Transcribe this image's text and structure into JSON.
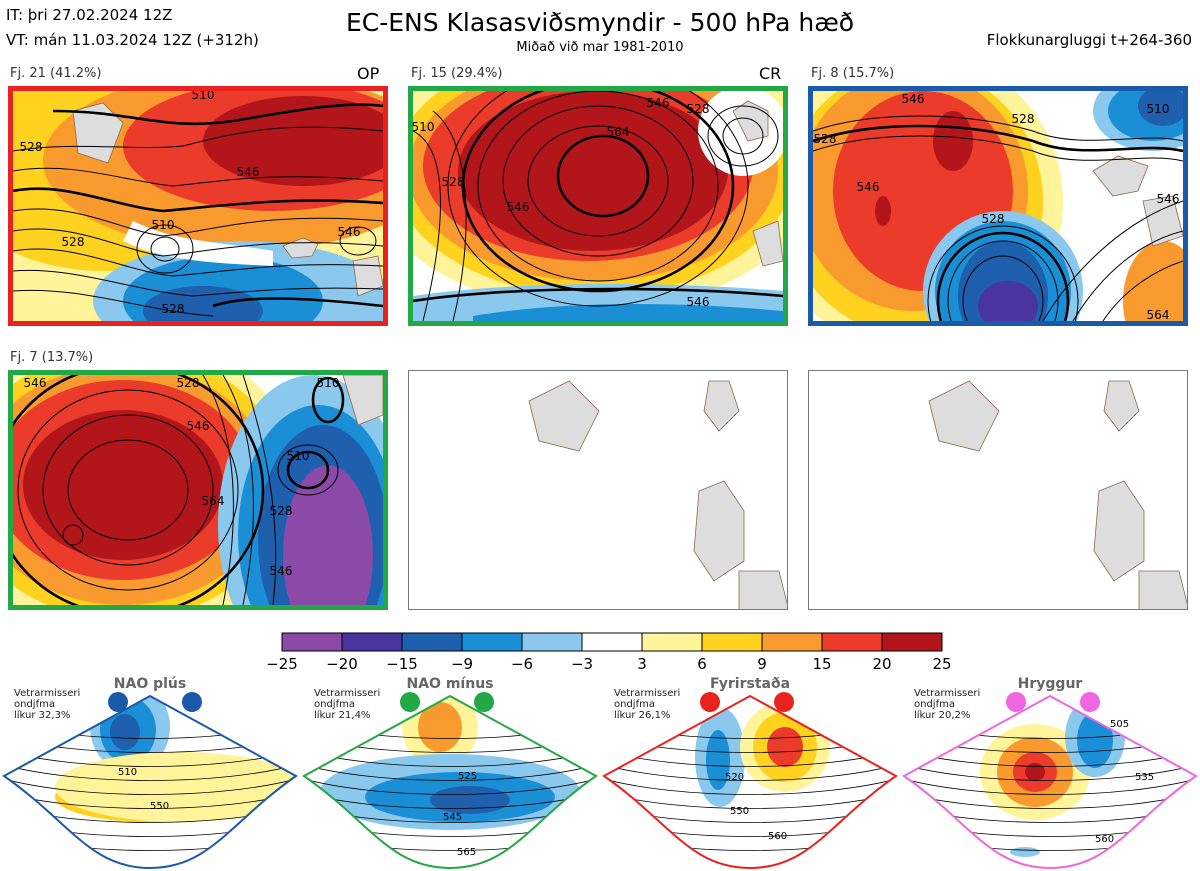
{
  "header": {
    "it_line": "IT: þri 27.02.2024 12Z",
    "vt_line": "VT: mán 11.03.2024 12Z  (+312h)",
    "title": "EC-ENS Klasasviðsmyndir - 500 hPa hæð",
    "subtitle": "Miðað við mar 1981-2010",
    "window": "Flokkunargluggi t+264-360"
  },
  "clusters": [
    {
      "label": "Fj. 21 (41.2%)",
      "tag": "OP",
      "border_color": "#e8231f",
      "contours": [
        "510",
        "528",
        "546",
        "546",
        "528",
        "510",
        "528"
      ]
    },
    {
      "label": "Fj. 15 (29.4%)",
      "tag": "CR",
      "border_color": "#22a845",
      "contours": [
        "510",
        "528",
        "564",
        "546",
        "528",
        "546",
        "546"
      ]
    },
    {
      "label": "Fj. 8 (15.7%)",
      "tag": "",
      "border_color": "#1a5aa8",
      "contours": [
        "528",
        "528",
        "546",
        "528",
        "546",
        "510",
        "546",
        "564"
      ]
    },
    {
      "label": "Fj. 7 (13.7%)",
      "tag": "",
      "border_color": "#22a845",
      "contours": [
        "546",
        "528",
        "546",
        "564",
        "510",
        "510",
        "528",
        "546"
      ]
    }
  ],
  "chart_data": {
    "type": "heatmap",
    "description_units": "500 hPa height anomaly (dam)",
    "colorbar": {
      "ticks": [
        "−25",
        "−20",
        "−15",
        "−9",
        "−6",
        "−3",
        "3",
        "6",
        "9",
        "15",
        "20",
        "25"
      ],
      "colors": [
        "#8b4aa8",
        "#4a35a0",
        "#1e5fae",
        "#1b8fd6",
        "#8ac8ee",
        "#ffffff",
        "#fff49a",
        "#ffd21f",
        "#f99a2e",
        "#ea3b2b",
        "#b2161b"
      ]
    }
  },
  "regimes": [
    {
      "title": "NAO plús",
      "info": [
        "Vetrarmisseri",
        "ondjfma",
        "líkur 32,3%"
      ],
      "color": "#1a5aa8",
      "labels": [
        "510",
        "550"
      ]
    },
    {
      "title": "NAO mínus",
      "info": [
        "Vetrarmisseri",
        "ondjfma",
        "líkur 21,4%"
      ],
      "color": "#22a845",
      "labels": [
        "525",
        "545",
        "565"
      ]
    },
    {
      "title": "Fyrirstaða",
      "info": [
        "Vetrarmisseri",
        "ondjfma",
        "líkur 26,1%"
      ],
      "color": "#e8231f",
      "labels": [
        "520",
        "550",
        "560"
      ]
    },
    {
      "title": "Hryggur",
      "info": [
        "Vetrarmisseri",
        "ondjfma",
        "líkur 20,2%"
      ],
      "color": "#ee66e0",
      "labels": [
        "505",
        "535",
        "560"
      ]
    }
  ]
}
